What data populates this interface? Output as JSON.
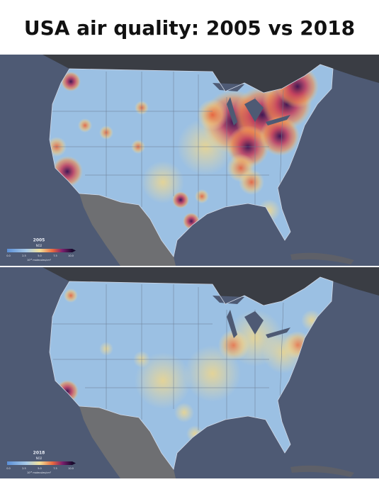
{
  "header": {
    "title": "USA air quality: 2005 vs 2018"
  },
  "panels": [
    {
      "year": "2005",
      "legend": {
        "title": "NO2",
        "ticks": [
          "0.0",
          "2.5",
          "5.0",
          "7.5",
          "10.0"
        ],
        "unit": "10¹⁵ molecules/cm²"
      }
    },
    {
      "year": "2018",
      "legend": {
        "title": "NO2",
        "ticks": [
          "0.0",
          "2.5",
          "5.0",
          "7.5",
          "10.0"
        ],
        "unit": "10¹⁵ molecules/cm²"
      }
    }
  ]
}
